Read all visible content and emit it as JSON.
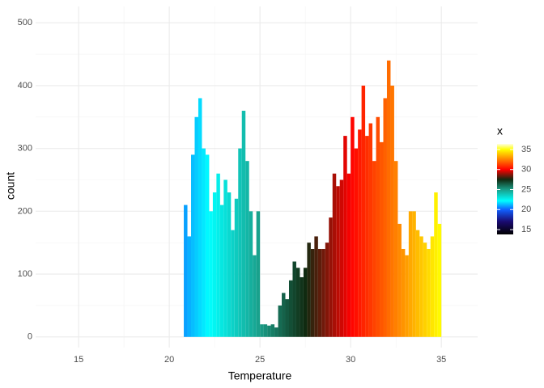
{
  "chart_data": {
    "type": "histogram",
    "x_label": "Temperature",
    "y_label": "count",
    "bins": [
      20.8,
      21.0,
      21.2,
      21.4,
      21.6,
      21.8,
      22.0,
      22.2,
      22.4,
      22.6,
      22.8,
      23.0,
      23.2,
      23.4,
      23.6,
      23.8,
      24.0,
      24.2,
      24.4,
      24.6,
      24.8,
      25.0,
      25.2,
      25.4,
      25.6,
      25.8,
      26.0,
      26.2,
      26.4,
      26.6,
      26.8,
      27.0,
      27.2,
      27.4,
      27.6,
      27.8,
      28.0,
      28.2,
      28.4,
      28.6,
      28.8,
      29.0,
      29.2,
      29.4,
      29.6,
      29.8,
      30.0,
      30.2,
      30.4,
      30.6,
      30.8,
      31.0,
      31.2,
      31.4,
      31.6,
      31.8,
      32.0,
      32.2,
      32.4,
      32.6,
      32.8,
      33.0,
      33.2,
      33.4,
      33.6,
      33.8,
      34.0,
      34.2,
      34.4,
      34.6,
      34.8,
      35.0
    ],
    "values": [
      210,
      160,
      290,
      350,
      380,
      300,
      290,
      200,
      230,
      260,
      210,
      250,
      230,
      170,
      220,
      300,
      360,
      280,
      200,
      130,
      200,
      20,
      20,
      18,
      20,
      15,
      50,
      70,
      60,
      90,
      120,
      110,
      95,
      110,
      150,
      140,
      160,
      140,
      140,
      150,
      190,
      260,
      240,
      250,
      320,
      260,
      350,
      300,
      330,
      400,
      320,
      340,
      280,
      350,
      310,
      380,
      440,
      400,
      280,
      180,
      140,
      130,
      200,
      200,
      170,
      160,
      150,
      140,
      160,
      230,
      180
    ],
    "xlim": [
      12.63,
      37.0
    ],
    "xticks": [
      15,
      20,
      25,
      30,
      35
    ],
    "ylim": [
      -17,
      526
    ],
    "yticks": [
      0,
      100,
      200,
      300,
      400,
      500
    ],
    "grid": true,
    "legend": {
      "title": "x",
      "position": "right",
      "lim": [
        13.8,
        36.4
      ],
      "ticks": [
        15,
        20,
        25,
        30,
        35
      ]
    },
    "color_stops": [
      {
        "value": 13.8,
        "color": "#000000"
      },
      {
        "value": 17,
        "color": "#1a0a70"
      },
      {
        "value": 20,
        "color": "#1060ff"
      },
      {
        "value": 22.2,
        "color": "#00ffff"
      },
      {
        "value": 25,
        "color": "#1a9e88"
      },
      {
        "value": 27.5,
        "color": "#102a10"
      },
      {
        "value": 30,
        "color": "#ff0000"
      },
      {
        "value": 32.5,
        "color": "#ff8000"
      },
      {
        "value": 35,
        "color": "#ffff00"
      },
      {
        "value": 36.4,
        "color": "#ffffe0"
      }
    ]
  }
}
